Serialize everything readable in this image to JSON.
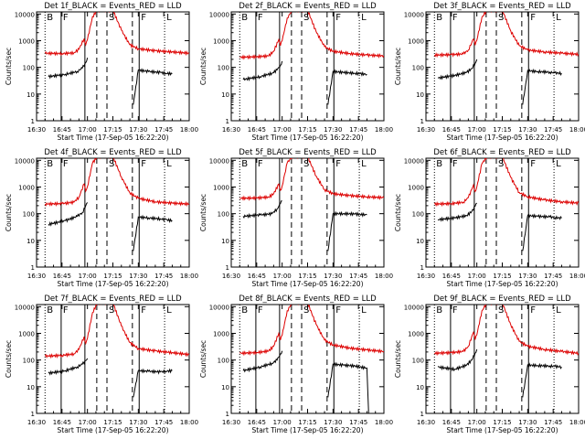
{
  "x_axis": {
    "ticks": [
      "16:30",
      "16:45",
      "17:00",
      "17:15",
      "17:30",
      "17:45",
      "18:00"
    ],
    "tick_minutes": [
      0,
      15,
      30,
      45,
      60,
      75,
      90
    ],
    "xlabel": "Start Time (17-Sep-05 16:22:20)"
  },
  "y_axis": {
    "ylabel": "Counts/sec",
    "ticks": [
      "1",
      "10",
      "100",
      "1000",
      "10000"
    ],
    "tick_values": [
      1,
      10,
      100,
      1000,
      10000
    ],
    "ylim": [
      1,
      12000
    ],
    "scale": "log"
  },
  "interval_markers": [
    {
      "label": "B",
      "minute": 5.0,
      "style": "dotted"
    },
    {
      "label": "F",
      "minute": 14.5,
      "style": "solid"
    },
    {
      "label": "S",
      "minute": 41.5,
      "style": "dashed"
    },
    {
      "label": "",
      "minute": 28.5,
      "style": "solid"
    },
    {
      "label": "",
      "minute": 35.5,
      "style": "dashed"
    },
    {
      "label": "F",
      "minute": 60.5,
      "style": "solid"
    },
    {
      "label": "",
      "minute": 56.5,
      "style": "dashed"
    },
    {
      "label": "L",
      "minute": 75.5,
      "style": "dotted"
    }
  ],
  "colors": {
    "black_series": "#000000",
    "red_series": "#dd0000",
    "axes": "#000000"
  },
  "chart_data": [
    {
      "type": "line",
      "title": "Det  1f_BLACK = Events_RED = LLD",
      "series": [
        {
          "name": "Events",
          "color": "black",
          "minutes": [
            7,
            17,
            24,
            27,
            29,
            30,
            36,
            40,
            55,
            57,
            60,
            66,
            73,
            76,
            80
          ],
          "values": [
            45,
            55,
            70,
            95,
            150,
            230,
            null,
            null,
            null,
            4,
            80,
            70,
            65,
            60,
            58
          ]
        },
        {
          "name": "LLD",
          "color": "red",
          "minutes": [
            5,
            15,
            22,
            25,
            28,
            29,
            30,
            33,
            36,
            40,
            45,
            50,
            55,
            60,
            70,
            80,
            90
          ],
          "values": [
            340,
            330,
            350,
            480,
            1200,
            700,
            1100,
            8000,
            14000,
            14000,
            14000,
            2500,
            700,
            500,
            420,
            380,
            340
          ]
        }
      ]
    },
    {
      "type": "line",
      "title": "Det  2f_BLACK = Events_RED = LLD",
      "series": [
        {
          "name": "Events",
          "color": "black",
          "minutes": [
            7,
            17,
            24,
            27,
            29,
            30,
            36,
            40,
            55,
            57,
            60,
            66,
            73,
            76,
            80
          ],
          "values": [
            35,
            45,
            60,
            80,
            120,
            170,
            null,
            null,
            null,
            4,
            70,
            65,
            60,
            58,
            55
          ]
        },
        {
          "name": "LLD",
          "color": "red",
          "minutes": [
            5,
            15,
            22,
            25,
            28,
            29,
            30,
            33,
            36,
            40,
            45,
            50,
            55,
            60,
            70,
            80,
            90
          ],
          "values": [
            240,
            250,
            270,
            400,
            1100,
            650,
            1000,
            7000,
            14000,
            14000,
            14000,
            2200,
            600,
            400,
            330,
            290,
            270
          ]
        }
      ]
    },
    {
      "type": "line",
      "title": "Det  3f_BLACK = Events_RED = LLD",
      "series": [
        {
          "name": "Events",
          "color": "black",
          "minutes": [
            7,
            17,
            24,
            27,
            29,
            30,
            36,
            40,
            55,
            57,
            60,
            66,
            73,
            76,
            80
          ],
          "values": [
            40,
            50,
            65,
            90,
            140,
            200,
            null,
            null,
            null,
            4,
            75,
            70,
            66,
            62,
            60
          ]
        },
        {
          "name": "LLD",
          "color": "red",
          "minutes": [
            5,
            15,
            22,
            25,
            28,
            29,
            30,
            33,
            36,
            40,
            45,
            50,
            55,
            60,
            70,
            80,
            90
          ],
          "values": [
            290,
            300,
            320,
            450,
            1150,
            680,
            1050,
            7500,
            14000,
            14000,
            14000,
            2300,
            650,
            450,
            380,
            340,
            310
          ]
        }
      ]
    },
    {
      "type": "line",
      "title": "Det  4f_BLACK = Events_RED = LLD",
      "series": [
        {
          "name": "Events",
          "color": "black",
          "minutes": [
            7,
            17,
            24,
            27,
            29,
            30,
            36,
            40,
            55,
            57,
            60,
            66,
            73,
            76,
            80
          ],
          "values": [
            40,
            55,
            80,
            110,
            200,
            260,
            null,
            null,
            null,
            4,
            75,
            70,
            64,
            60,
            55
          ]
        },
        {
          "name": "LLD",
          "color": "red",
          "minutes": [
            5,
            15,
            22,
            25,
            28,
            29,
            30,
            33,
            36,
            40,
            45,
            50,
            55,
            60,
            70,
            80,
            90
          ],
          "values": [
            230,
            240,
            270,
            420,
            1300,
            700,
            1050,
            8000,
            14000,
            14000,
            14000,
            2400,
            600,
            380,
            280,
            250,
            230
          ]
        }
      ]
    },
    {
      "type": "line",
      "title": "Det  5f_BLACK = Events_RED = LLD",
      "series": [
        {
          "name": "Events",
          "color": "black",
          "minutes": [
            7,
            17,
            24,
            27,
            29,
            30,
            36,
            40,
            55,
            57,
            60,
            66,
            73,
            76,
            80
          ],
          "values": [
            80,
            90,
            100,
            150,
            240,
            300,
            null,
            null,
            null,
            4,
            100,
            100,
            98,
            95,
            90
          ]
        },
        {
          "name": "LLD",
          "color": "red",
          "minutes": [
            5,
            15,
            22,
            25,
            28,
            29,
            30,
            33,
            36,
            40,
            45,
            50,
            55,
            60,
            70,
            80,
            90
          ],
          "values": [
            380,
            390,
            420,
            560,
            1300,
            750,
            1100,
            8000,
            14000,
            14000,
            14000,
            2600,
            800,
            560,
            480,
            430,
            400
          ]
        }
      ]
    },
    {
      "type": "line",
      "title": "Det  6f_BLACK = Events_RED = LLD",
      "series": [
        {
          "name": "Events",
          "color": "black",
          "minutes": [
            7,
            17,
            24,
            27,
            29,
            30,
            36,
            40,
            55,
            57,
            60,
            66,
            73,
            76,
            80
          ],
          "values": [
            60,
            70,
            85,
            120,
            190,
            250,
            null,
            null,
            null,
            4,
            85,
            80,
            76,
            72,
            68
          ]
        },
        {
          "name": "LLD",
          "color": "red",
          "minutes": [
            5,
            15,
            22,
            25,
            28,
            29,
            30,
            33,
            36,
            40,
            45,
            50,
            55,
            60,
            70,
            80,
            90
          ],
          "values": [
            230,
            240,
            270,
            400,
            1200,
            680,
            1020,
            7500,
            14000,
            14000,
            14000,
            2300,
            620,
            430,
            330,
            280,
            250
          ]
        }
      ]
    },
    {
      "type": "line",
      "title": "Det  7f_BLACK = Events_RED = LLD",
      "series": [
        {
          "name": "Events",
          "color": "black",
          "minutes": [
            7,
            17,
            24,
            27,
            29,
            30,
            36,
            40,
            55,
            57,
            60,
            66,
            73,
            76,
            80
          ],
          "values": [
            32,
            40,
            55,
            70,
            95,
            115,
            null,
            null,
            null,
            4,
            40,
            38,
            36,
            38,
            40
          ]
        },
        {
          "name": "LLD",
          "color": "red",
          "minutes": [
            5,
            15,
            22,
            25,
            28,
            29,
            30,
            33,
            36,
            40,
            45,
            50,
            55,
            60,
            70,
            80,
            90
          ],
          "values": [
            140,
            150,
            170,
            250,
            750,
            420,
            650,
            6000,
            14000,
            14000,
            14000,
            1900,
            450,
            270,
            220,
            190,
            160
          ]
        }
      ]
    },
    {
      "type": "line",
      "title": "Det  8f_BLACK = Events_RED = LLD",
      "series": [
        {
          "name": "Events",
          "color": "black",
          "minutes": [
            7,
            17,
            24,
            27,
            29,
            30,
            36,
            40,
            55,
            57,
            60,
            66,
            73,
            76,
            80,
            81
          ],
          "values": [
            40,
            55,
            75,
            100,
            170,
            220,
            null,
            null,
            null,
            4,
            70,
            65,
            60,
            55,
            50,
            1
          ]
        },
        {
          "name": "LLD",
          "color": "red",
          "minutes": [
            5,
            15,
            22,
            25,
            28,
            29,
            30,
            33,
            36,
            40,
            45,
            50,
            55,
            60,
            70,
            80,
            90
          ],
          "values": [
            180,
            190,
            220,
            330,
            1000,
            560,
            850,
            7000,
            14000,
            14000,
            14000,
            2200,
            560,
            370,
            280,
            240,
            210
          ]
        }
      ]
    },
    {
      "type": "line",
      "title": "Det  9f_BLACK = Events_RED = LLD",
      "series": [
        {
          "name": "Events",
          "color": "black",
          "minutes": [
            7,
            17,
            24,
            27,
            29,
            30,
            36,
            40,
            55,
            57,
            60,
            66,
            73,
            76,
            80
          ],
          "values": [
            55,
            45,
            65,
            100,
            180,
            250,
            null,
            null,
            null,
            4,
            65,
            62,
            60,
            58,
            55
          ]
        },
        {
          "name": "LLD",
          "color": "red",
          "minutes": [
            5,
            15,
            22,
            25,
            28,
            29,
            30,
            33,
            36,
            40,
            45,
            50,
            55,
            60,
            70,
            80,
            90
          ],
          "values": [
            180,
            190,
            210,
            330,
            1100,
            580,
            880,
            7000,
            14000,
            14000,
            14000,
            2100,
            500,
            330,
            250,
            210,
            180
          ]
        }
      ]
    }
  ]
}
